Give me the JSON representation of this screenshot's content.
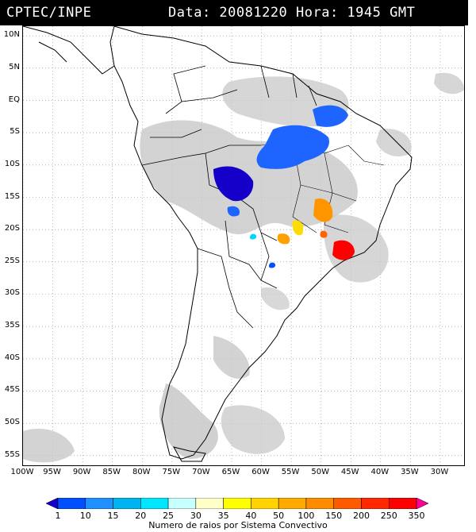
{
  "header": {
    "agency": "CPTEC/INPE",
    "stamp": "Data: 20081220 Hora: 1945 GMT"
  },
  "axes": {
    "lat_labels": [
      "10N",
      "5N",
      "EQ",
      "5S",
      "10S",
      "15S",
      "20S",
      "25S",
      "30S",
      "35S",
      "40S",
      "45S",
      "50S",
      "55S"
    ],
    "lon_labels": [
      "100W",
      "95W",
      "90W",
      "85W",
      "80W",
      "75W",
      "70W",
      "65W",
      "60W",
      "55W",
      "50W",
      "45W",
      "40W",
      "35W",
      "30W"
    ],
    "lat_range": [
      11.5,
      -56.5
    ],
    "lon_range": [
      -100,
      -26
    ]
  },
  "legend": {
    "title": "Numero de raios por Sistema Convectivo",
    "values": [
      "1",
      "10",
      "15",
      "20",
      "25",
      "30",
      "35",
      "40",
      "50",
      "100",
      "150",
      "200",
      "250",
      "350"
    ],
    "colors": [
      "#1400c8",
      "#0050ff",
      "#1e90ff",
      "#00b4f0",
      "#00e6ff",
      "#c8ffff",
      "#ffffc8",
      "#ffff00",
      "#ffd200",
      "#ffaa00",
      "#ff8c00",
      "#ff5a00",
      "#ff2800",
      "#ff0000",
      "#ff0096"
    ]
  },
  "colors": {
    "cloud": "#c8c8c8",
    "land": "#ffffff",
    "coast": "#000000",
    "grid": "#888888"
  }
}
